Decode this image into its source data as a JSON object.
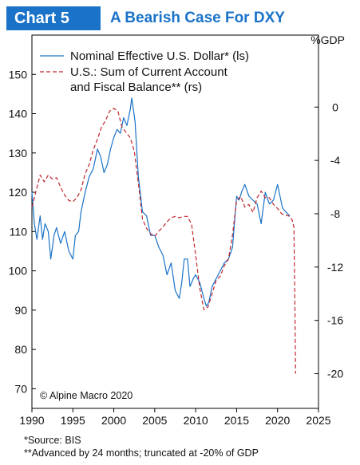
{
  "header": {
    "badge": "Chart 5",
    "title": "A Bearish Case For DXY"
  },
  "chart_data": {
    "type": "line",
    "title": "A Bearish Case For DXY",
    "right_axis_unit": "%GDP",
    "xlim": [
      1990,
      2025
    ],
    "x_ticks": [
      1990,
      1995,
      2000,
      2005,
      2010,
      2015,
      2020,
      2025
    ],
    "y_left_lim": [
      65,
      160
    ],
    "y_left_ticks": [
      70,
      80,
      90,
      100,
      110,
      120,
      130,
      140,
      150
    ],
    "y_right_lim": [
      -22.6,
      5.4
    ],
    "y_right_ticks": [
      0,
      -4,
      -8,
      -12,
      -16,
      -20
    ],
    "y_right_tick_labels": [
      "0",
      "-4",
      "-8",
      "-12",
      "-16",
      "-20"
    ],
    "legend": {
      "position": "top-left",
      "entries": [
        {
          "text": "Nominal Effective U.S. Dollar* (ls)"
        },
        {
          "text": "U.S.: Sum of Current Account"
        },
        {
          "text": "and Fiscal Balance** (rs)"
        }
      ]
    },
    "series": [
      {
        "name": "Nominal Effective U.S. Dollar* (ls)",
        "axis": "left",
        "color": "#1a73c8",
        "style": "solid",
        "x": [
          1990.0,
          1990.3,
          1990.6,
          1991.0,
          1991.3,
          1991.6,
          1992.0,
          1992.3,
          1992.7,
          1993.0,
          1993.5,
          1994.0,
          1994.5,
          1995.0,
          1995.3,
          1995.7,
          1996.0,
          1996.5,
          1997.0,
          1997.5,
          1998.0,
          1998.4,
          1998.8,
          1999.2,
          1999.6,
          2000.0,
          2000.4,
          2000.8,
          2001.2,
          2001.6,
          2002.0,
          2002.2,
          2002.6,
          2003.0,
          2003.5,
          2004.0,
          2004.5,
          2005.0,
          2005.5,
          2006.0,
          2006.5,
          2007.0,
          2007.5,
          2008.0,
          2008.3,
          2008.6,
          2009.0,
          2009.3,
          2009.7,
          2010.0,
          2010.5,
          2011.0,
          2011.3,
          2011.6,
          2012.0,
          2012.5,
          2013.0,
          2013.5,
          2014.0,
          2014.5,
          2015.0,
          2015.3,
          2015.6,
          2016.0,
          2016.5,
          2017.0,
          2017.5,
          2018.0,
          2018.5,
          2019.0,
          2019.5,
          2020.0,
          2020.3,
          2020.6,
          2021.0,
          2021.5
        ],
        "y": [
          120,
          112,
          108,
          114,
          108,
          112,
          110,
          103,
          109,
          111,
          107,
          110,
          105,
          103,
          109,
          110,
          115,
          120,
          124,
          126,
          131,
          129,
          125,
          127,
          131,
          134,
          136,
          135,
          139,
          137,
          141,
          144,
          138,
          124,
          115,
          114,
          109,
          109,
          106,
          104,
          99,
          102,
          95,
          93,
          97,
          103,
          103,
          96,
          98,
          99,
          97,
          93,
          91,
          92,
          96,
          98,
          100,
          102,
          103,
          106,
          119,
          118,
          120,
          122,
          119,
          118,
          117,
          112,
          120,
          117,
          118,
          122,
          119,
          116,
          115,
          114
        ]
      },
      {
        "name": "U.S.: Sum of Current Account and Fiscal Balance** (rs)",
        "axis": "right",
        "color": "#c0272d",
        "style": "dashed",
        "x": [
          1990.0,
          1990.5,
          1991.0,
          1991.5,
          1992.0,
          1992.5,
          1993.0,
          1993.5,
          1994.0,
          1994.5,
          1995.0,
          1995.5,
          1996.0,
          1996.5,
          1997.0,
          1997.5,
          1998.0,
          1998.5,
          1999.0,
          1999.5,
          2000.0,
          2000.5,
          2001.0,
          2001.5,
          2002.0,
          2002.5,
          2003.0,
          2003.5,
          2004.0,
          2004.5,
          2005.0,
          2005.5,
          2006.0,
          2006.5,
          2007.0,
          2007.5,
          2008.0,
          2008.5,
          2009.0,
          2009.5,
          2010.0,
          2010.5,
          2011.0,
          2011.5,
          2012.0,
          2012.5,
          2013.0,
          2013.5,
          2014.0,
          2014.5,
          2015.0,
          2015.5,
          2016.0,
          2016.5,
          2017.0,
          2017.5,
          2018.0,
          2018.5,
          2019.0,
          2019.5,
          2020.0,
          2020.5,
          2021.0,
          2021.5,
          2021.8,
          2022.0,
          2022.1,
          2022.2
        ],
        "y": [
          -7.5,
          -6.3,
          -5.1,
          -5.6,
          -5.1,
          -5.4,
          -5.3,
          -6.0,
          -6.6,
          -7.0,
          -7.1,
          -6.8,
          -6.2,
          -5.0,
          -4.3,
          -3.2,
          -2.4,
          -1.5,
          -1.0,
          -0.3,
          -0.1,
          -0.3,
          -1.5,
          -1.9,
          -2.3,
          -3.3,
          -5.7,
          -8.4,
          -9.1,
          -9.5,
          -9.7,
          -9.3,
          -9.0,
          -8.6,
          -8.3,
          -8.2,
          -8.3,
          -8.2,
          -8.2,
          -8.8,
          -11.1,
          -13.6,
          -15.2,
          -15.0,
          -14.0,
          -13.0,
          -12.7,
          -11.9,
          -11.4,
          -9.6,
          -7.0,
          -6.7,
          -7.5,
          -7.3,
          -7.9,
          -6.8,
          -6.3,
          -6.8,
          -6.8,
          -7.3,
          -7.6,
          -8.0,
          -8.1,
          -8.2,
          -8.5,
          -9.0,
          -14.0,
          -20.0
        ]
      }
    ]
  },
  "footnotes": {
    "source": "*Source: BIS",
    "advanced": "**Advanced by 24 months; truncated at -20% of GDP"
  },
  "watermark": "© Alpine Macro 2020"
}
